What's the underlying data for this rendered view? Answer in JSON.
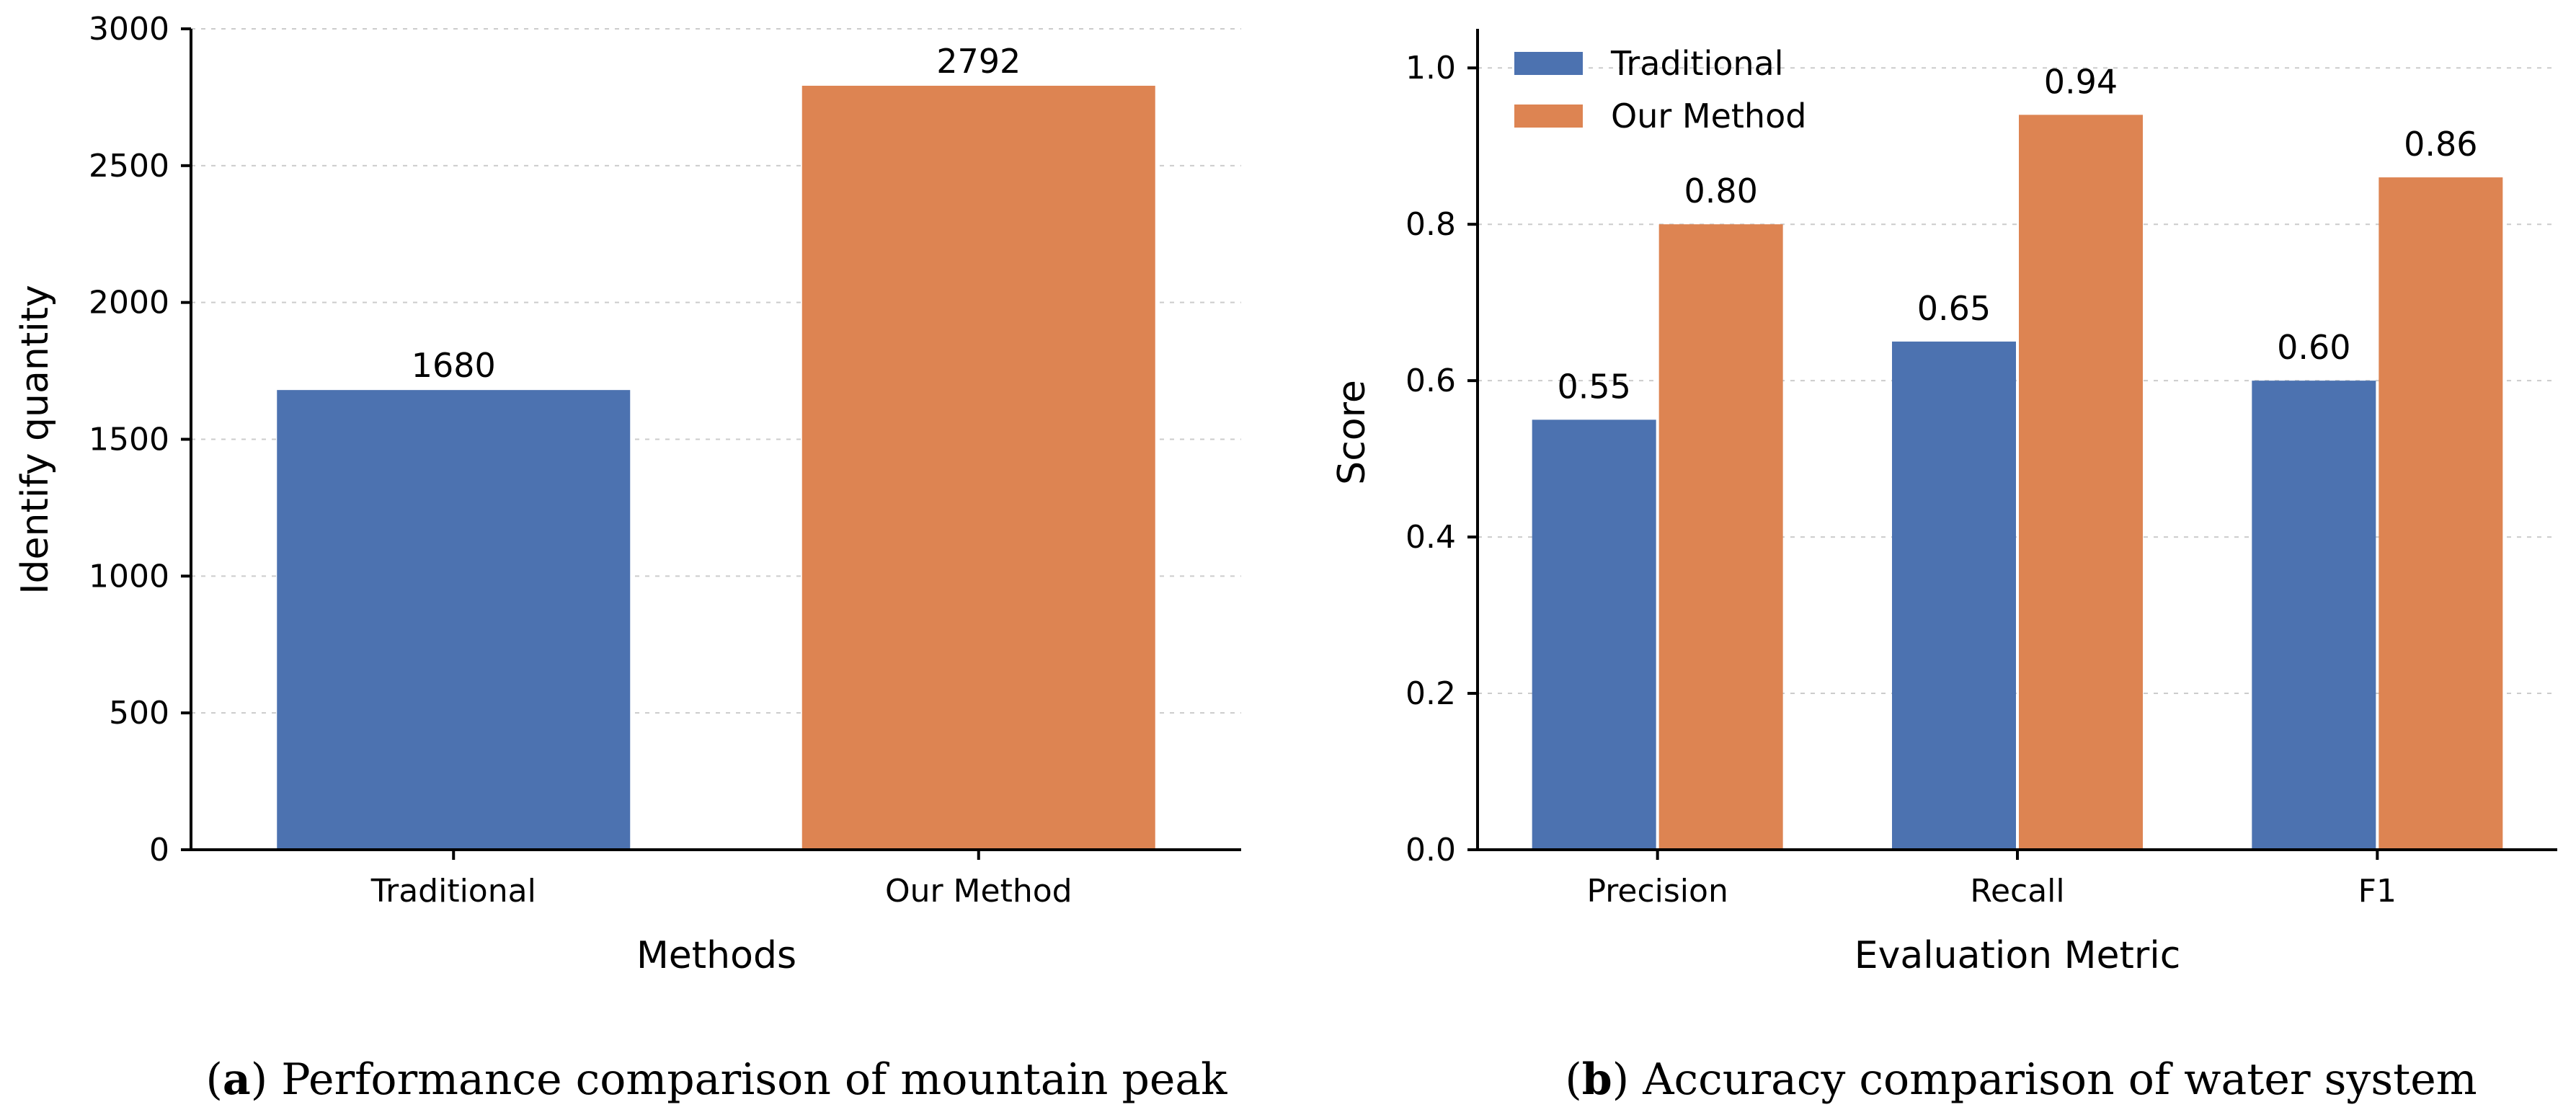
{
  "chart_data": [
    {
      "type": "bar",
      "categories": [
        "Traditional",
        "Our Method"
      ],
      "values": [
        1680,
        2792
      ],
      "value_labels": [
        "1680",
        "2792"
      ],
      "colors": [
        "#4c72b0",
        "#dd8452"
      ],
      "xlabel": "Methods",
      "ylabel": "Identify quantity",
      "ylim": [
        0,
        3000
      ],
      "yticks": [
        0,
        500,
        1000,
        1500,
        2000,
        2500,
        3000
      ],
      "ytick_labels": [
        "0",
        "500",
        "1000",
        "1500",
        "2000",
        "2500",
        "3000"
      ],
      "grid": true,
      "caption_letter": "a",
      "caption_text": "Performance comparison of mountain peak"
    },
    {
      "type": "bar",
      "categories": [
        "Precision",
        "Recall",
        "F1"
      ],
      "series": [
        {
          "name": "Traditional",
          "values": [
            0.55,
            0.65,
            0.6
          ],
          "labels": [
            "0.55",
            "0.65",
            "0.60"
          ],
          "color": "#4c72b0"
        },
        {
          "name": "Our Method",
          "values": [
            0.8,
            0.94,
            0.86
          ],
          "labels": [
            "0.80",
            "0.94",
            "0.86"
          ],
          "color": "#dd8452"
        }
      ],
      "xlabel": "Evaluation Metric",
      "ylabel": "Score",
      "ylim": [
        0,
        1.05
      ],
      "yticks": [
        0.0,
        0.2,
        0.4,
        0.6,
        0.8,
        1.0
      ],
      "ytick_labels": [
        "0.0",
        "0.2",
        "0.4",
        "0.6",
        "0.8",
        "1.0"
      ],
      "legend_position": "top-left",
      "grid": true,
      "caption_letter": "b",
      "caption_text": "Accuracy comparison of water system"
    }
  ]
}
